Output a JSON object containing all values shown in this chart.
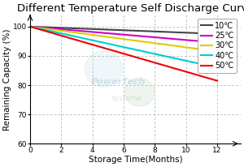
{
  "title": "Different Temperature Self Discharge Curve",
  "xlabel": "Storage Time(Months)",
  "ylabel": "Remaining Capacity (%)",
  "xlim": [
    0,
    13.5
  ],
  "ylim": [
    60,
    104
  ],
  "yticks": [
    60,
    70,
    80,
    90,
    100
  ],
  "xticks": [
    0,
    2,
    4,
    6,
    8,
    10,
    12
  ],
  "series": [
    {
      "label": "10℃",
      "color": "#444444",
      "x": [
        0,
        12
      ],
      "y": [
        100,
        97.5
      ]
    },
    {
      "label": "25℃",
      "color": "#cc00cc",
      "x": [
        0,
        12
      ],
      "y": [
        100,
        94.5
      ]
    },
    {
      "label": "30℃",
      "color": "#ddcc00",
      "x": [
        0,
        12
      ],
      "y": [
        100,
        91.5
      ]
    },
    {
      "label": "40℃",
      "color": "#00cccc",
      "x": [
        0,
        12
      ],
      "y": [
        100,
        86.0
      ]
    },
    {
      "label": "50℃",
      "color": "#ee0000",
      "x": [
        0,
        12
      ],
      "y": [
        100,
        81.5
      ]
    }
  ],
  "grid_color": "#aaaaaa",
  "grid_style": "--",
  "background_color": "#ffffff",
  "title_fontsize": 9.5,
  "axis_fontsize": 7.5,
  "tick_fontsize": 6.5,
  "legend_fontsize": 7,
  "line_width": 1.5
}
